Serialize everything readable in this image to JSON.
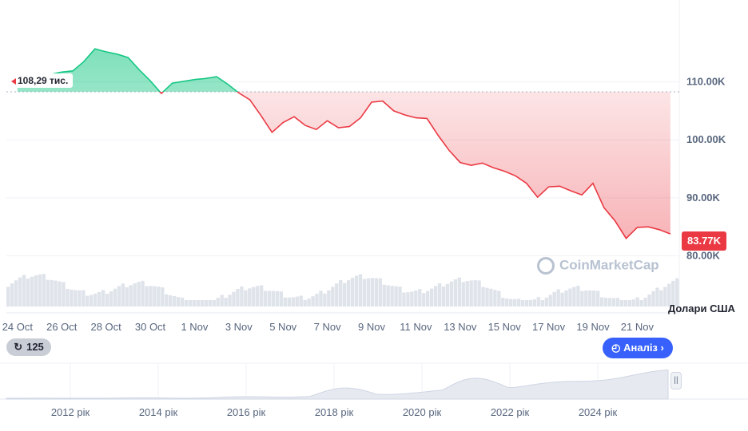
{
  "chart_data": {
    "type": "area",
    "title": "",
    "currency_label": "Долари США",
    "reference_label": "108,29 тис.",
    "reference_value": 108290,
    "last_price_label": "83.77K",
    "last_price_value": 83770,
    "y_ticks": [
      "110.00K",
      "100.00K",
      "90.00K",
      "80.00K"
    ],
    "y_tick_values": [
      110000,
      100000,
      90000,
      80000
    ],
    "ylim": [
      78000,
      120000
    ],
    "x_tick_labels": [
      "24 Oct",
      "26 Oct",
      "28 Oct",
      "30 Oct",
      "1 Nov",
      "3 Nov",
      "5 Nov",
      "7 Nov",
      "9 Nov",
      "11 Nov",
      "13 Nov",
      "15 Nov",
      "17 Nov",
      "19 Nov",
      "21 Nov"
    ],
    "xlim_days": [
      -0.5,
      29.9
    ],
    "series": [
      {
        "x_days": [
          0,
          0.5,
          1,
          1.5,
          2,
          2.5,
          3,
          3.5,
          4,
          4.5,
          5,
          5.5,
          6,
          6.5,
          7,
          7.5,
          8,
          8.5,
          9,
          9.5,
          10,
          10.5,
          11,
          11.5,
          12,
          12.5,
          13,
          13.5,
          14,
          14.5,
          15,
          15.5,
          16,
          16.5,
          17,
          17.5,
          18,
          18.5,
          19,
          19.5,
          20,
          20.5,
          21,
          21.5,
          22,
          22.5,
          23,
          23.5,
          24,
          24.5,
          25,
          25.5,
          26,
          26.5,
          27,
          27.5,
          28,
          28.5,
          29,
          29.5
        ],
        "values": [
          109800,
          110500,
          111000,
          111300,
          111700,
          111900,
          113500,
          115700,
          115200,
          114800,
          114200,
          112100,
          110200,
          108000,
          109800,
          110100,
          110400,
          110600,
          110900,
          109600,
          108100,
          106900,
          104200,
          101300,
          103000,
          104000,
          102500,
          101800,
          103300,
          102100,
          102300,
          103800,
          106500,
          106700,
          105000,
          104300,
          103800,
          103700,
          100800,
          98200,
          96100,
          95600,
          96000,
          95200,
          94600,
          93800,
          92500,
          90100,
          91900,
          92000,
          91200,
          90500,
          92500,
          88300,
          86000,
          83000,
          84900,
          85000,
          84500,
          83770
        ]
      }
    ],
    "volume_label": "",
    "overview_years": [
      "2012 рік",
      "2014 рік",
      "2016 рік",
      "2018 рік",
      "2020 рік",
      "2022 рік",
      "2024 рік"
    ]
  },
  "controls": {
    "history_count": "125",
    "analysis_label": "Аналіз",
    "watermark": "CoinMarketCap",
    "handle_glyph": "||"
  },
  "colors": {
    "up": "#16c784",
    "down": "#ea3943",
    "accent": "#3861fb"
  },
  "icons": [
    "history-icon",
    "analysis-icon",
    "chevron-right-icon",
    "coinmarketcap-logo"
  ]
}
